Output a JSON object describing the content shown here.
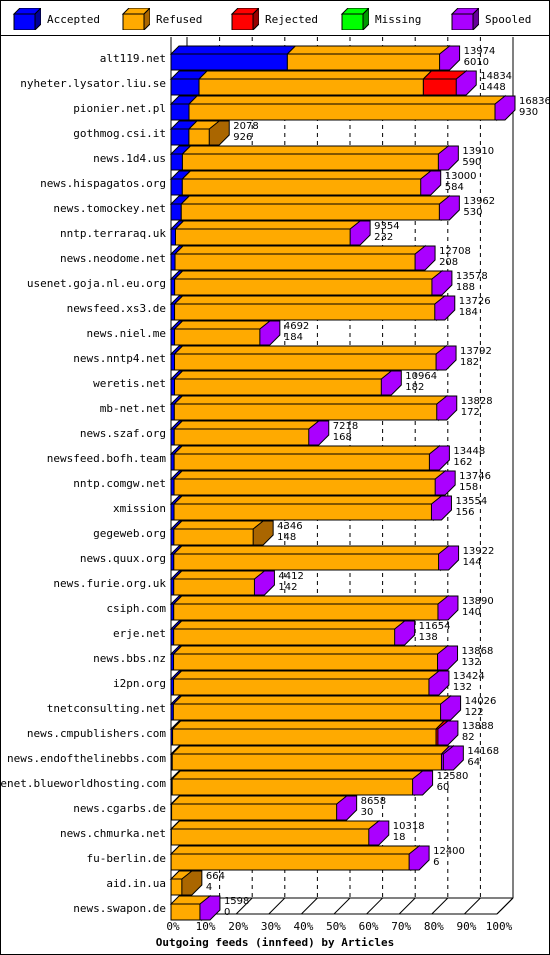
{
  "legend": [
    {
      "name": "Accepted",
      "color": "#0000ff",
      "side": "#000099"
    },
    {
      "name": "Refused",
      "color": "#ffaa00",
      "side": "#aa6600"
    },
    {
      "name": "Rejected",
      "color": "#ff0000",
      "side": "#990000"
    },
    {
      "name": "Missing",
      "color": "#00ff00",
      "side": "#009900"
    },
    {
      "name": "Spooled",
      "color": "#aa00ff",
      "side": "#660099"
    }
  ],
  "chart_data": {
    "type": "bar",
    "orientation": "horizontal",
    "stacked": true,
    "title": "",
    "xlabel": "Outgoing feeds (innfeed) by Articles",
    "ylabel": "",
    "xlim": [
      0,
      100
    ],
    "x_ticks": [
      "0%",
      "10%",
      "20%",
      "30%",
      "40%",
      "50%",
      "60%",
      "70%",
      "80%",
      "90%",
      "100%"
    ],
    "grid": true,
    "scale_max_articles": 16836,
    "series_names": [
      "Accepted",
      "Refused",
      "Rejected",
      "Missing",
      "Spooled"
    ],
    "rows": [
      {
        "name": "alt119.net",
        "accepted": 6010,
        "refused": 7964,
        "rejected": 0,
        "missing": 0,
        "spooled": 0,
        "total": "13974",
        "second": "6010"
      },
      {
        "name": "nyheter.lysator.liu.se",
        "accepted": 1448,
        "refused": 11586,
        "rejected": 1800,
        "missing": 0,
        "spooled": 0,
        "total": "14834",
        "second": "1448"
      },
      {
        "name": "pionier.net.pl",
        "accepted": 930,
        "refused": 15906,
        "rejected": 0,
        "missing": 0,
        "spooled": 0,
        "total": "16836",
        "second": "930"
      },
      {
        "name": "gothmog.csi.it",
        "accepted": 926,
        "refused": 1152,
        "rejected": 0,
        "missing": 0,
        "spooled": 0,
        "total": "2078",
        "second": "926"
      },
      {
        "name": "news.1d4.us",
        "accepted": 590,
        "refused": 13320,
        "rejected": 0,
        "missing": 0,
        "spooled": 0,
        "total": "13910",
        "second": "590"
      },
      {
        "name": "news.hispagatos.org",
        "accepted": 584,
        "refused": 12416,
        "rejected": 0,
        "missing": 0,
        "spooled": 0,
        "total": "13000",
        "second": "584"
      },
      {
        "name": "news.tomockey.net",
        "accepted": 530,
        "refused": 13432,
        "rejected": 0,
        "missing": 0,
        "spooled": 0,
        "total": "13962",
        "second": "530"
      },
      {
        "name": "nntp.terraraq.uk",
        "accepted": 232,
        "refused": 9122,
        "rejected": 0,
        "missing": 0,
        "spooled": 0,
        "total": "9354",
        "second": "232"
      },
      {
        "name": "news.neodome.net",
        "accepted": 208,
        "refused": 12500,
        "rejected": 0,
        "missing": 0,
        "spooled": 0,
        "total": "12708",
        "second": "208"
      },
      {
        "name": "usenet.goja.nl.eu.org",
        "accepted": 188,
        "refused": 13390,
        "rejected": 0,
        "missing": 0,
        "spooled": 0,
        "total": "13578",
        "second": "188"
      },
      {
        "name": "newsfeed.xs3.de",
        "accepted": 184,
        "refused": 13542,
        "rejected": 0,
        "missing": 0,
        "spooled": 0,
        "total": "13726",
        "second": "184"
      },
      {
        "name": "news.niel.me",
        "accepted": 184,
        "refused": 4508,
        "rejected": 0,
        "missing": 0,
        "spooled": 0,
        "total": "4692",
        "second": "184"
      },
      {
        "name": "news.nntp4.net",
        "accepted": 182,
        "refused": 13610,
        "rejected": 0,
        "missing": 0,
        "spooled": 0,
        "total": "13792",
        "second": "182"
      },
      {
        "name": "weretis.net",
        "accepted": 182,
        "refused": 10782,
        "rejected": 0,
        "missing": 0,
        "spooled": 0,
        "total": "10964",
        "second": "182"
      },
      {
        "name": "mb-net.net",
        "accepted": 172,
        "refused": 13656,
        "rejected": 0,
        "missing": 0,
        "spooled": 0,
        "total": "13828",
        "second": "172"
      },
      {
        "name": "news.szaf.org",
        "accepted": 168,
        "refused": 7050,
        "rejected": 0,
        "missing": 0,
        "spooled": 0,
        "total": "7218",
        "second": "168"
      },
      {
        "name": "newsfeed.bofh.team",
        "accepted": 162,
        "refused": 13286,
        "rejected": 0,
        "missing": 0,
        "spooled": 0,
        "total": "13448",
        "second": "162"
      },
      {
        "name": "nntp.comgw.net",
        "accepted": 158,
        "refused": 13588,
        "rejected": 0,
        "missing": 0,
        "spooled": 0,
        "total": "13746",
        "second": "158"
      },
      {
        "name": "xmission",
        "accepted": 156,
        "refused": 13398,
        "rejected": 0,
        "missing": 0,
        "spooled": 0,
        "total": "13554",
        "second": "156"
      },
      {
        "name": "gegeweb.org",
        "accepted": 148,
        "refused": 4198,
        "rejected": 0,
        "missing": 0,
        "spooled": 0,
        "total": "4346",
        "second": "148"
      },
      {
        "name": "news.quux.org",
        "accepted": 144,
        "refused": 13778,
        "rejected": 0,
        "missing": 0,
        "spooled": 0,
        "total": "13922",
        "second": "144"
      },
      {
        "name": "news.furie.org.uk",
        "accepted": 142,
        "refused": 4270,
        "rejected": 0,
        "missing": 0,
        "spooled": 0,
        "total": "4412",
        "second": "142"
      },
      {
        "name": "csiph.com",
        "accepted": 140,
        "refused": 13750,
        "rejected": 0,
        "missing": 0,
        "spooled": 0,
        "total": "13890",
        "second": "140"
      },
      {
        "name": "erje.net",
        "accepted": 138,
        "refused": 11516,
        "rejected": 0,
        "missing": 0,
        "spooled": 0,
        "total": "11654",
        "second": "138"
      },
      {
        "name": "news.bbs.nz",
        "accepted": 132,
        "refused": 13736,
        "rejected": 0,
        "missing": 0,
        "spooled": 0,
        "total": "13868",
        "second": "132"
      },
      {
        "name": "i2pn.org",
        "accepted": 132,
        "refused": 13292,
        "rejected": 0,
        "missing": 0,
        "spooled": 0,
        "total": "13424",
        "second": "132"
      },
      {
        "name": "tnetconsulting.net",
        "accepted": 122,
        "refused": 13904,
        "rejected": 0,
        "missing": 0,
        "spooled": 0,
        "total": "14026",
        "second": "122"
      },
      {
        "name": "news.cmpublishers.com",
        "accepted": 82,
        "refused": 13606,
        "rejected": 200,
        "missing": 0,
        "spooled": 0,
        "total": "13888",
        "second": "82"
      },
      {
        "name": "news.endofthelinebbs.com",
        "accepted": 64,
        "refused": 13904,
        "rejected": 0,
        "missing": 0,
        "spooled": 200,
        "total": "14168",
        "second": "64"
      },
      {
        "name": "usenet.blueworldhosting.com",
        "accepted": 60,
        "refused": 12520,
        "rejected": 0,
        "missing": 0,
        "spooled": 0,
        "total": "12580",
        "second": "60"
      },
      {
        "name": "news.cgarbs.de",
        "accepted": 30,
        "refused": 8628,
        "rejected": 0,
        "missing": 0,
        "spooled": 0,
        "total": "8658",
        "second": "30"
      },
      {
        "name": "news.chmurka.net",
        "accepted": 18,
        "refused": 10300,
        "rejected": 0,
        "missing": 0,
        "spooled": 0,
        "total": "10318",
        "second": "18"
      },
      {
        "name": "fu-berlin.de",
        "accepted": 6,
        "refused": 12394,
        "rejected": 0,
        "missing": 0,
        "spooled": 0,
        "total": "12400",
        "second": "6"
      },
      {
        "name": "aid.in.ua",
        "accepted": 4,
        "refused": 660,
        "rejected": 0,
        "missing": 0,
        "spooled": 0,
        "total": "664",
        "second": "4"
      },
      {
        "name": "news.swapon.de",
        "accepted": 0,
        "refused": 1598,
        "rejected": 0,
        "missing": 0,
        "spooled": 0,
        "total": "1598",
        "second": "0"
      }
    ]
  }
}
